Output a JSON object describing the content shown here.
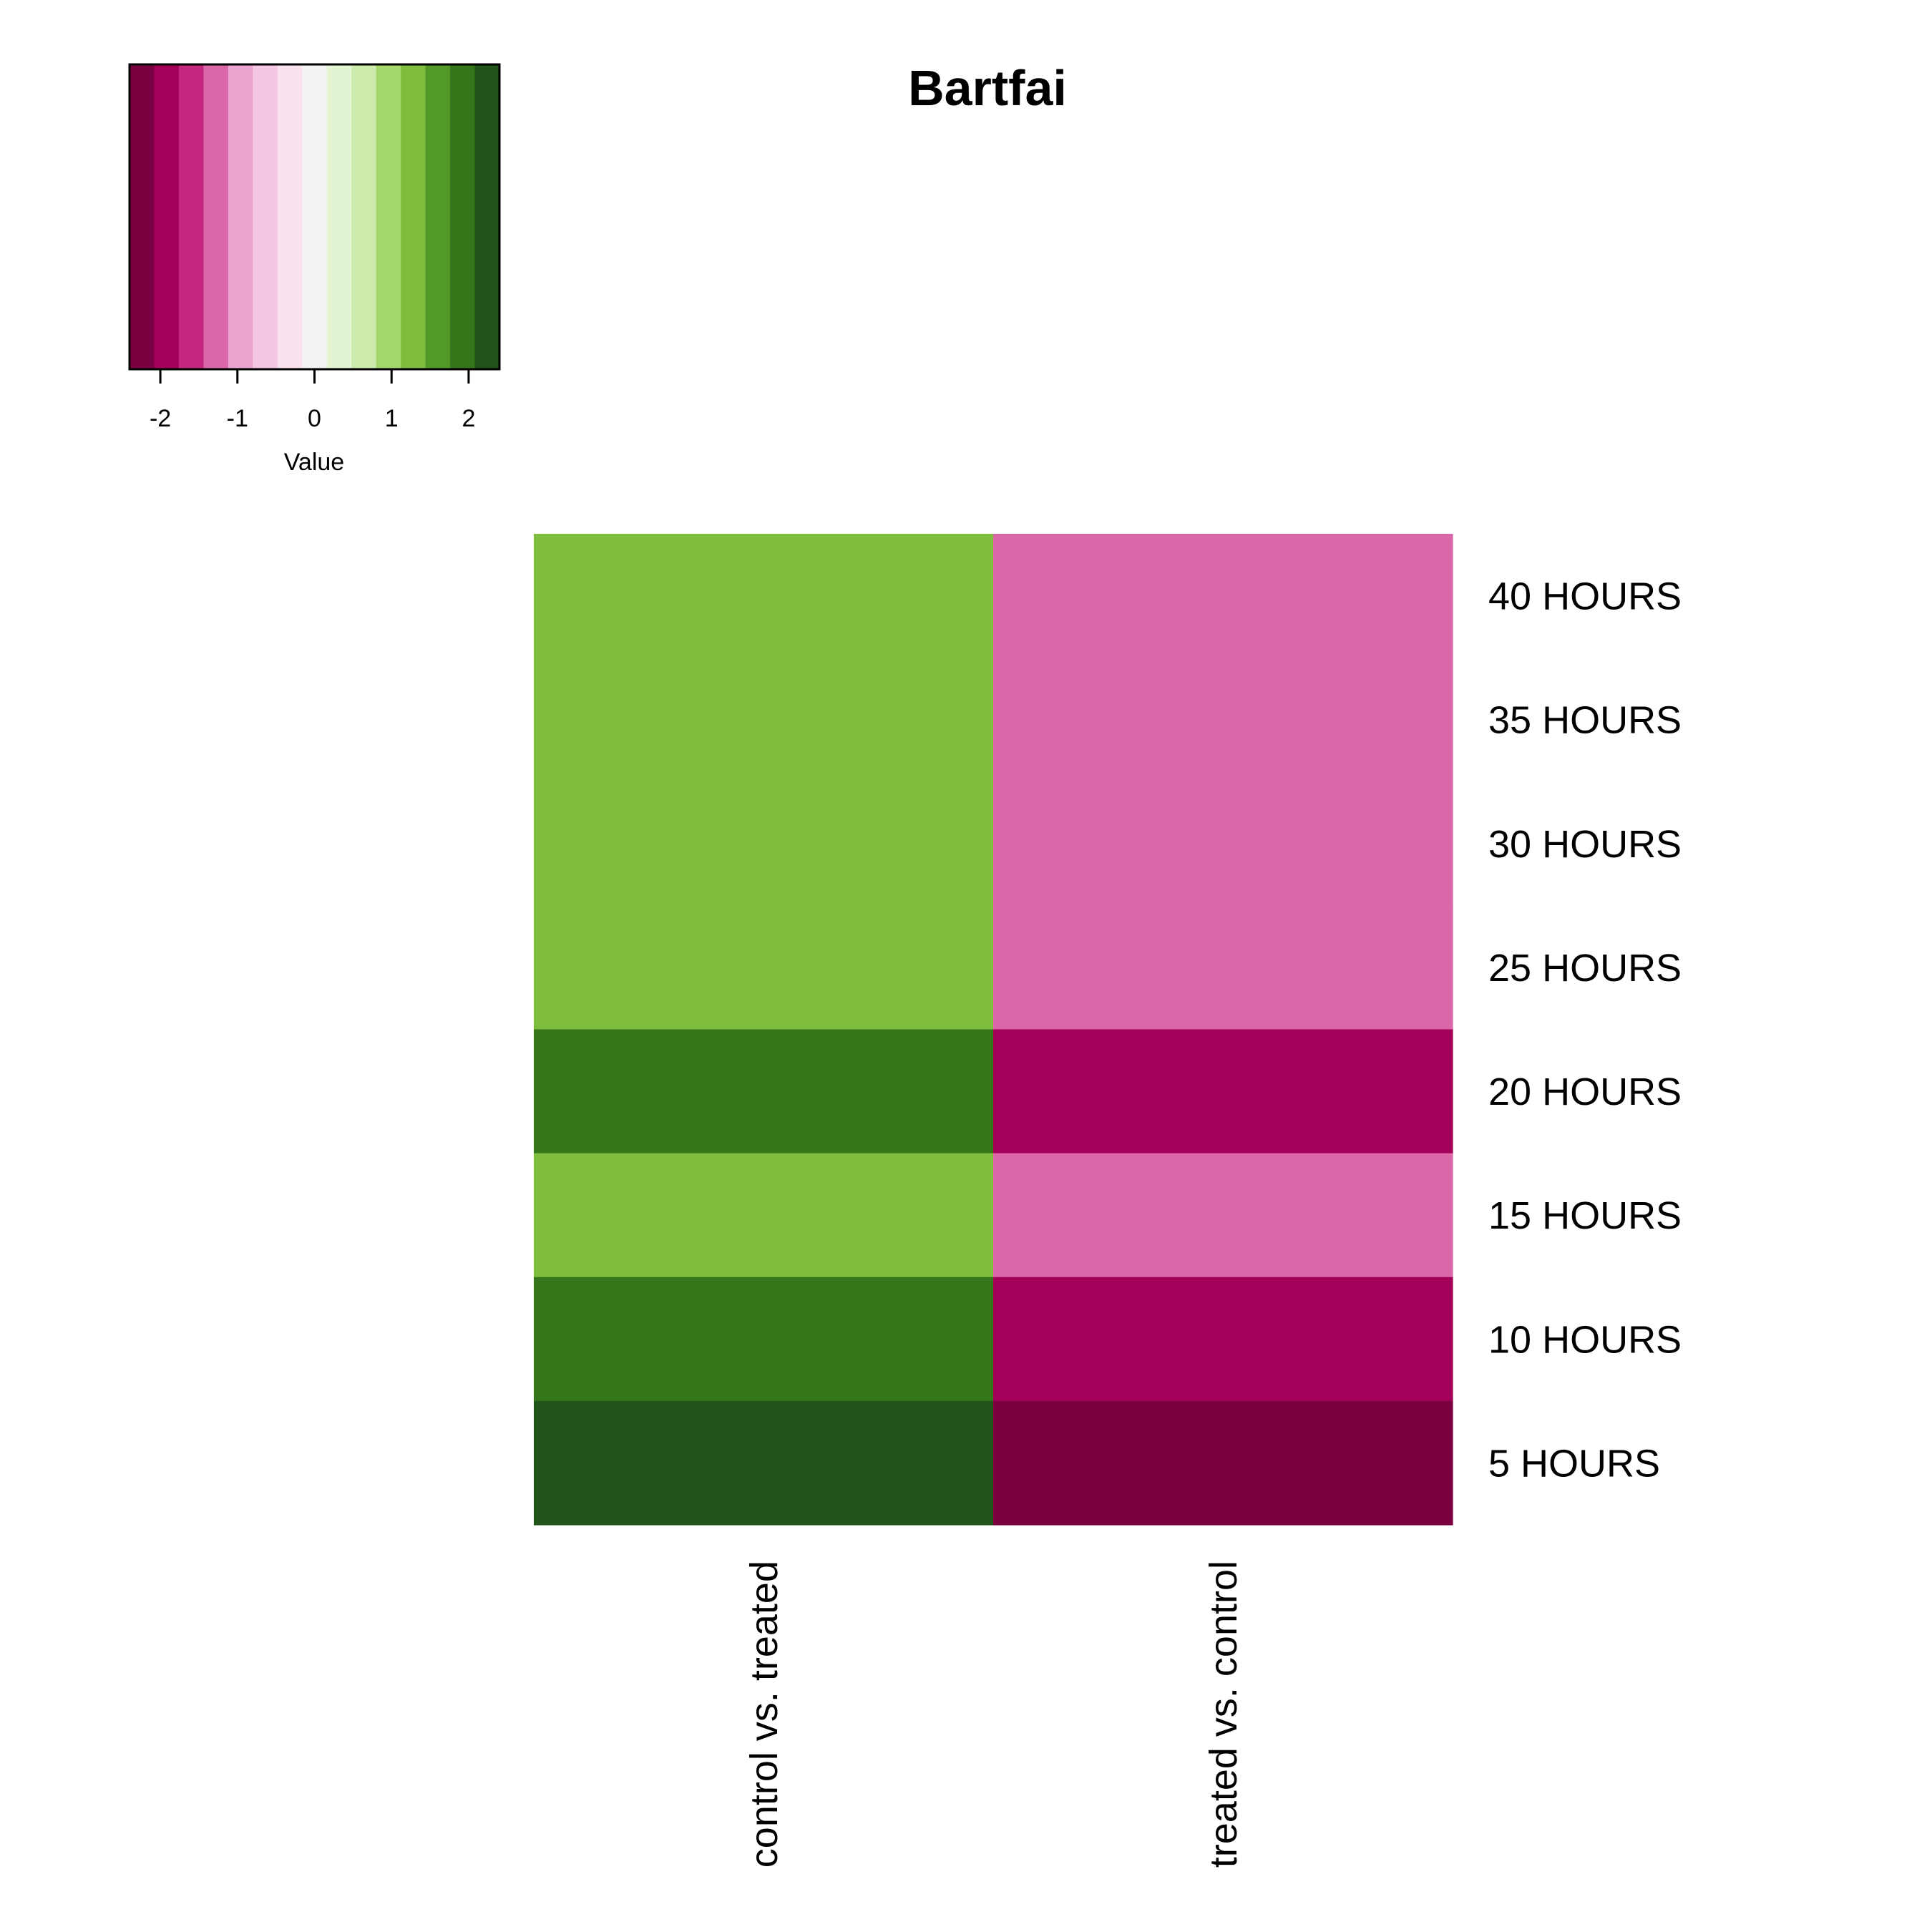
{
  "chart_data": {
    "type": "heatmap",
    "title": "Bartfai",
    "columns": [
      "control vs. treated",
      "treated vs. control"
    ],
    "rows": [
      "40 HOURS",
      "35 HOURS",
      "30 HOURS",
      "25 HOURS",
      "20 HOURS",
      "15 HOURS",
      "10 HOURS",
      "5 HOURS"
    ],
    "values": [
      [
        1.4,
        -1.4
      ],
      [
        1.4,
        -1.4
      ],
      [
        1.4,
        -1.4
      ],
      [
        1.4,
        -1.4
      ],
      [
        1.9,
        -1.9
      ],
      [
        1.4,
        -1.4
      ],
      [
        1.9,
        -1.9
      ],
      [
        2.3,
        -2.3
      ]
    ],
    "color_key": {
      "xlabel": "Value",
      "ticks": [
        -2,
        -1,
        0,
        1,
        2
      ],
      "tick_labels": [
        "-2",
        "-1",
        "0",
        "1",
        "2"
      ],
      "range": [
        -2.4,
        2.4
      ],
      "colors": [
        "#7b0041",
        "#a30059",
        "#c3287e",
        "#da67a8",
        "#eba4cf",
        "#f6c7e3",
        "#fae1ee",
        "#f3f3f3",
        "#e3f4d2",
        "#ccebad",
        "#a4d76a",
        "#7ebd3e",
        "#539928",
        "#36761a",
        "#215418"
      ]
    }
  }
}
